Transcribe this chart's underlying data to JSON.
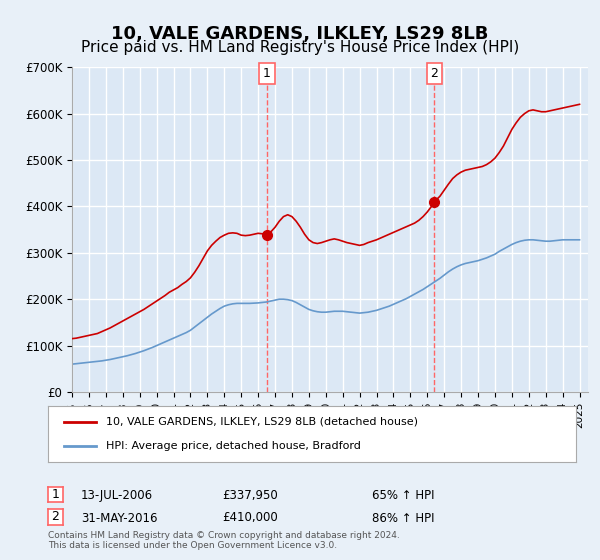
{
  "title": "10, VALE GARDENS, ILKLEY, LS29 8LB",
  "subtitle": "Price paid vs. HM Land Registry's House Price Index (HPI)",
  "title_fontsize": 13,
  "subtitle_fontsize": 11,
  "ylim": [
    0,
    700000
  ],
  "yticks": [
    0,
    100000,
    200000,
    300000,
    400000,
    500000,
    600000,
    700000
  ],
  "ytick_labels": [
    "£0",
    "£100K",
    "£200K",
    "£300K",
    "£400K",
    "£500K",
    "£600K",
    "£700K"
  ],
  "xlim_start": 1995.0,
  "xlim_end": 2025.5,
  "red_color": "#cc0000",
  "blue_color": "#6699cc",
  "marker_color_1": "#cc0000",
  "marker_color_2": "#cc0000",
  "dashed_line_color": "#ff6666",
  "background_color": "#e8f0f8",
  "plot_bg_color": "#dce8f5",
  "grid_color": "#ffffff",
  "legend_label_red": "10, VALE GARDENS, ILKLEY, LS29 8LB (detached house)",
  "legend_label_blue": "HPI: Average price, detached house, Bradford",
  "transaction1_date": "13-JUL-2006",
  "transaction1_price": "£337,950",
  "transaction1_pct": "65% ↑ HPI",
  "transaction1_x": 2006.53,
  "transaction1_y": 337950,
  "transaction2_date": "31-MAY-2016",
  "transaction2_price": "£410,000",
  "transaction2_pct": "86% ↑ HPI",
  "transaction2_x": 2016.42,
  "transaction2_y": 410000,
  "footer": "Contains HM Land Registry data © Crown copyright and database right 2024.\nThis data is licensed under the Open Government Licence v3.0.",
  "red_line_data": {
    "x": [
      1995.0,
      1995.25,
      1995.5,
      1995.75,
      1996.0,
      1996.25,
      1996.5,
      1996.75,
      1997.0,
      1997.25,
      1997.5,
      1997.75,
      1998.0,
      1998.25,
      1998.5,
      1998.75,
      1999.0,
      1999.25,
      1999.5,
      1999.75,
      2000.0,
      2000.25,
      2000.5,
      2000.75,
      2001.0,
      2001.25,
      2001.5,
      2001.75,
      2002.0,
      2002.25,
      2002.5,
      2002.75,
      2003.0,
      2003.25,
      2003.5,
      2003.75,
      2004.0,
      2004.25,
      2004.5,
      2004.75,
      2005.0,
      2005.25,
      2005.5,
      2005.75,
      2006.0,
      2006.25,
      2006.53,
      2006.75,
      2007.0,
      2007.25,
      2007.5,
      2007.75,
      2008.0,
      2008.25,
      2008.5,
      2008.75,
      2009.0,
      2009.25,
      2009.5,
      2009.75,
      2010.0,
      2010.25,
      2010.5,
      2010.75,
      2011.0,
      2011.25,
      2011.5,
      2011.75,
      2012.0,
      2012.25,
      2012.5,
      2012.75,
      2013.0,
      2013.25,
      2013.5,
      2013.75,
      2014.0,
      2014.25,
      2014.5,
      2014.75,
      2015.0,
      2015.25,
      2015.5,
      2015.75,
      2016.0,
      2016.25,
      2016.42,
      2016.75,
      2017.0,
      2017.25,
      2017.5,
      2017.75,
      2018.0,
      2018.25,
      2018.5,
      2018.75,
      2019.0,
      2019.25,
      2019.5,
      2019.75,
      2020.0,
      2020.25,
      2020.5,
      2020.75,
      2021.0,
      2021.25,
      2021.5,
      2021.75,
      2022.0,
      2022.25,
      2022.5,
      2022.75,
      2023.0,
      2023.25,
      2023.5,
      2023.75,
      2024.0,
      2024.25,
      2024.5,
      2024.75,
      2025.0
    ],
    "y": [
      115000,
      116000,
      118000,
      120000,
      122000,
      124000,
      126000,
      130000,
      134000,
      138000,
      143000,
      148000,
      153000,
      158000,
      163000,
      168000,
      173000,
      178000,
      184000,
      190000,
      196000,
      202000,
      208000,
      215000,
      220000,
      225000,
      232000,
      238000,
      246000,
      258000,
      272000,
      288000,
      304000,
      316000,
      325000,
      333000,
      338000,
      342000,
      343000,
      342000,
      338000,
      337000,
      338000,
      340000,
      342000,
      341000,
      337950,
      345000,
      355000,
      368000,
      378000,
      382000,
      378000,
      368000,
      355000,
      340000,
      328000,
      322000,
      320000,
      322000,
      325000,
      328000,
      330000,
      328000,
      325000,
      322000,
      320000,
      318000,
      316000,
      318000,
      322000,
      325000,
      328000,
      332000,
      336000,
      340000,
      344000,
      348000,
      352000,
      356000,
      360000,
      364000,
      370000,
      378000,
      388000,
      400000,
      410000,
      422000,
      435000,
      448000,
      460000,
      468000,
      474000,
      478000,
      480000,
      482000,
      484000,
      486000,
      490000,
      496000,
      504000,
      516000,
      530000,
      548000,
      566000,
      580000,
      592000,
      600000,
      606000,
      608000,
      606000,
      604000,
      604000,
      606000,
      608000,
      610000,
      612000,
      614000,
      616000,
      618000,
      620000
    ]
  },
  "blue_line_data": {
    "x": [
      1995.0,
      1995.25,
      1995.5,
      1995.75,
      1996.0,
      1996.25,
      1996.5,
      1996.75,
      1997.0,
      1997.25,
      1997.5,
      1997.75,
      1998.0,
      1998.25,
      1998.5,
      1998.75,
      1999.0,
      1999.25,
      1999.5,
      1999.75,
      2000.0,
      2000.25,
      2000.5,
      2000.75,
      2001.0,
      2001.25,
      2001.5,
      2001.75,
      2002.0,
      2002.25,
      2002.5,
      2002.75,
      2003.0,
      2003.25,
      2003.5,
      2003.75,
      2004.0,
      2004.25,
      2004.5,
      2004.75,
      2005.0,
      2005.25,
      2005.5,
      2005.75,
      2006.0,
      2006.25,
      2006.5,
      2006.75,
      2007.0,
      2007.25,
      2007.5,
      2007.75,
      2008.0,
      2008.25,
      2008.5,
      2008.75,
      2009.0,
      2009.25,
      2009.5,
      2009.75,
      2010.0,
      2010.25,
      2010.5,
      2010.75,
      2011.0,
      2011.25,
      2011.5,
      2011.75,
      2012.0,
      2012.25,
      2012.5,
      2012.75,
      2013.0,
      2013.25,
      2013.5,
      2013.75,
      2014.0,
      2014.25,
      2014.5,
      2014.75,
      2015.0,
      2015.25,
      2015.5,
      2015.75,
      2016.0,
      2016.25,
      2016.5,
      2016.75,
      2017.0,
      2017.25,
      2017.5,
      2017.75,
      2018.0,
      2018.25,
      2018.5,
      2018.75,
      2019.0,
      2019.25,
      2019.5,
      2019.75,
      2020.0,
      2020.25,
      2020.5,
      2020.75,
      2021.0,
      2021.25,
      2021.5,
      2021.75,
      2022.0,
      2022.25,
      2022.5,
      2022.75,
      2023.0,
      2023.25,
      2023.5,
      2023.75,
      2024.0,
      2024.25,
      2024.5,
      2024.75,
      2025.0
    ],
    "y": [
      60000,
      61000,
      62000,
      63000,
      64000,
      65000,
      66000,
      67000,
      68500,
      70000,
      72000,
      74000,
      76000,
      78000,
      80500,
      83000,
      86000,
      89000,
      92500,
      96000,
      100000,
      104000,
      108000,
      112000,
      116000,
      120000,
      124000,
      128000,
      133000,
      140000,
      147000,
      154000,
      161000,
      168000,
      174000,
      180000,
      185000,
      188000,
      190000,
      191000,
      191000,
      191000,
      191000,
      191500,
      192000,
      193000,
      194000,
      196000,
      198000,
      200000,
      200000,
      199000,
      197000,
      193000,
      188000,
      183000,
      178000,
      175000,
      173000,
      172000,
      172000,
      173000,
      174000,
      174000,
      174000,
      173000,
      172000,
      171000,
      170000,
      171000,
      172000,
      174000,
      176000,
      179000,
      182000,
      185000,
      189000,
      193000,
      197000,
      201000,
      206000,
      211000,
      216000,
      221000,
      227000,
      233000,
      239000,
      245000,
      252000,
      259000,
      265000,
      270000,
      274000,
      277000,
      279000,
      281000,
      283000,
      286000,
      289000,
      293000,
      297000,
      303000,
      308000,
      313000,
      318000,
      322000,
      325000,
      327000,
      328000,
      328000,
      327000,
      326000,
      325000,
      325000,
      326000,
      327000,
      328000,
      328000,
      328000,
      328000,
      328000
    ]
  }
}
